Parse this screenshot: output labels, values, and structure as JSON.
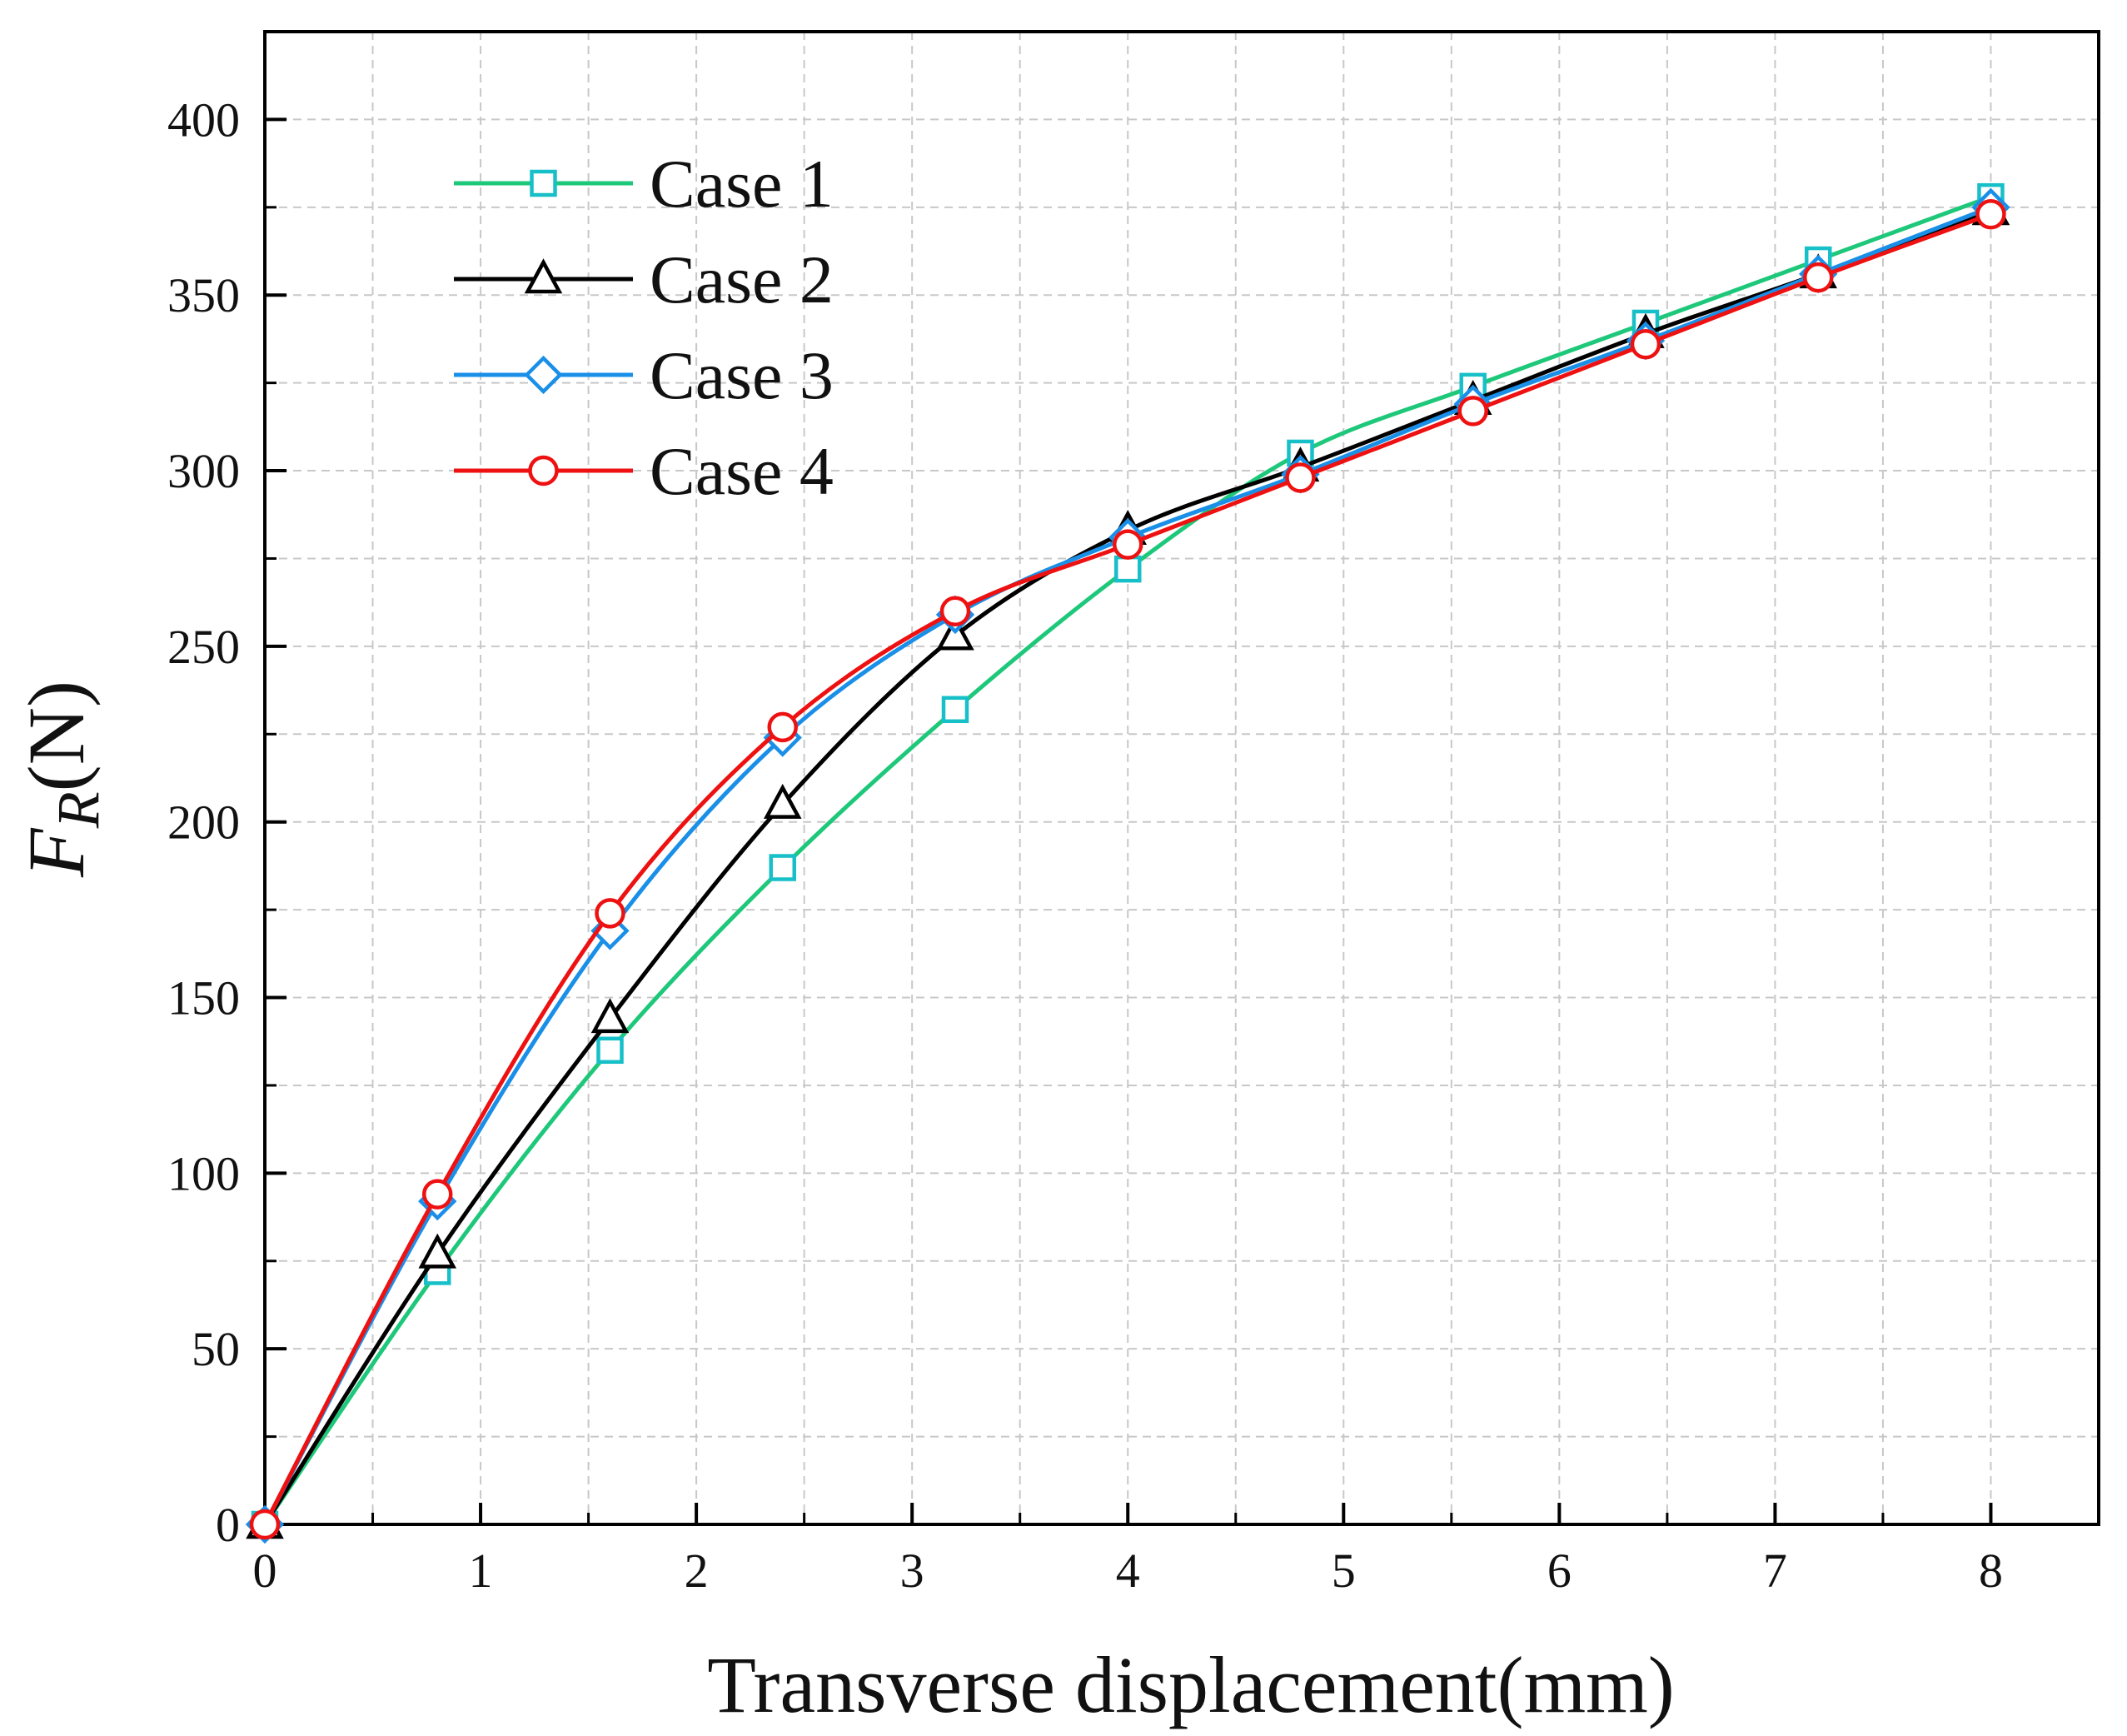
{
  "chart_data": {
    "type": "line",
    "title": "",
    "xlabel": "Transverse displacement(mm)",
    "ylabel": {
      "main": "F",
      "subscript": "R",
      "unit": "(N)"
    },
    "xlim": [
      0,
      8.5
    ],
    "ylim": [
      0,
      425
    ],
    "x_ticks": [
      0,
      1,
      2,
      3,
      4,
      5,
      6,
      7,
      8
    ],
    "y_ticks": [
      0,
      50,
      100,
      150,
      200,
      250,
      300,
      350,
      400
    ],
    "x_tick_labels": [
      "0",
      "1",
      "2",
      "3",
      "4",
      "5",
      "6",
      "7",
      "8"
    ],
    "y_tick_labels": [
      "0",
      "50",
      "100",
      "150",
      "200",
      "250",
      "300",
      "350",
      "400"
    ],
    "grid": true,
    "legend_position": "top-left",
    "x": [
      0,
      0.8,
      1.6,
      2.4,
      3.2,
      4.0,
      4.8,
      5.6,
      6.4,
      7.2,
      8.0
    ],
    "series": [
      {
        "name": "Case 1",
        "color": "#1ec87a",
        "marker_color": "#17c0c8",
        "marker": "square",
        "values": [
          0,
          72,
          135,
          187,
          232,
          272,
          305,
          324,
          342,
          360,
          378
        ]
      },
      {
        "name": "Case 2",
        "color": "#000000",
        "marker_color": "#000000",
        "marker": "triangle",
        "values": [
          0,
          77,
          144,
          205,
          253,
          283,
          301,
          320,
          339,
          356,
          374
        ]
      },
      {
        "name": "Case 3",
        "color": "#1a8fe8",
        "marker_color": "#1a8fe8",
        "marker": "diamond",
        "values": [
          0,
          92,
          169,
          224,
          259,
          281,
          299,
          319,
          337,
          356,
          375
        ]
      },
      {
        "name": "Case 4",
        "color": "#ee1111",
        "marker_color": "#ee1111",
        "marker": "circle",
        "values": [
          0,
          94,
          174,
          227,
          260,
          279,
          298,
          317,
          336,
          355,
          373
        ]
      }
    ]
  }
}
